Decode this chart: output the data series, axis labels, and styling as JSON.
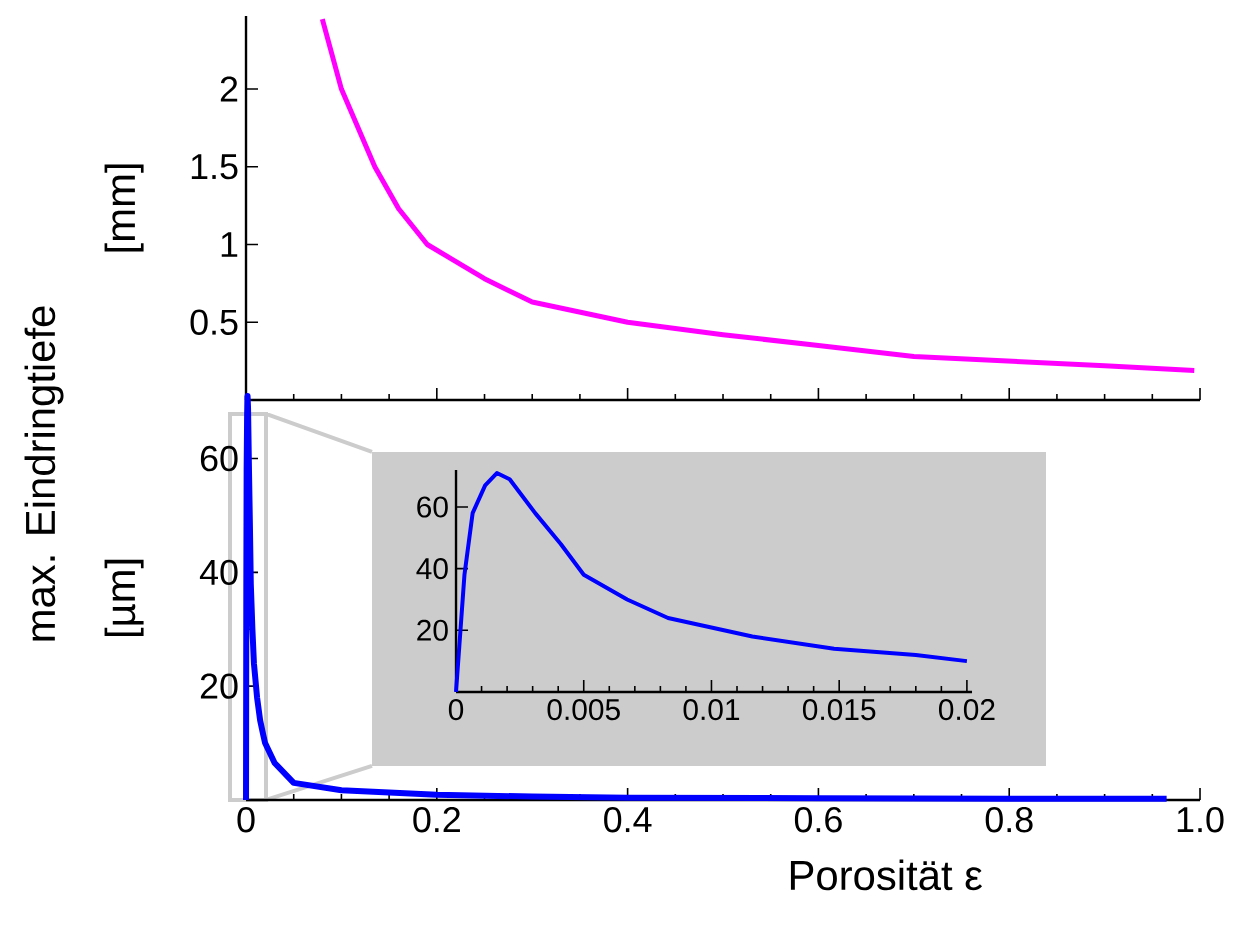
{
  "chart_data": [
    {
      "type": "line",
      "ylabel": "[mm]",
      "color": "#ff00ff",
      "xlim": [
        0,
        1
      ],
      "ylim": [
        0,
        2.47
      ],
      "xticks": [
        0,
        0.2,
        0.4,
        0.6,
        0.8,
        1
      ],
      "yticks": [
        0.5,
        1,
        1.5,
        2
      ],
      "tick_labels": "y",
      "x": [
        0.08,
        0.1,
        0.135,
        0.16,
        0.19,
        0.25,
        0.3,
        0.4,
        0.5,
        0.6,
        0.7,
        0.8,
        0.9,
        0.994
      ],
      "values": [
        2.45,
        2.0,
        1.5,
        1.23,
        1.0,
        0.78,
        0.63,
        0.5,
        0.42,
        0.35,
        0.28,
        0.25,
        0.22,
        0.19
      ]
    },
    {
      "type": "line",
      "xlabel": "Porosität ε",
      "ylabel": "[µm]",
      "annotations": [
        "max. Eindringtiefe"
      ],
      "color": "#0000ff",
      "xlim": [
        0,
        1
      ],
      "ylim": [
        0,
        71
      ],
      "xticks": [
        0,
        0.2,
        0.4,
        0.6,
        0.8,
        {
          "value": 1,
          "label": "1.0"
        }
      ],
      "yticks": [
        20,
        40,
        60
      ],
      "x": [
        0,
        0.00033,
        0.00065,
        0.00114,
        0.0016,
        0.0021,
        0.0031,
        0.0041,
        0.005,
        0.0067,
        0.0083,
        0.0116,
        0.0148,
        0.018,
        0.02,
        0.03,
        0.05,
        0.1,
        0.2,
        0.3,
        0.4,
        0.6,
        0.8,
        0.965
      ],
      "values": [
        0,
        38,
        58,
        67,
        71,
        69,
        58,
        48,
        38,
        30,
        24,
        18,
        14,
        11.5,
        10,
        6.5,
        3,
        1.7,
        0.9,
        0.6,
        0.4,
        0.3,
        0.2,
        0.2
      ]
    },
    {
      "type": "line",
      "color": "#0000ff",
      "xlim": [
        0,
        0.0202
      ],
      "ylim": [
        0,
        72
      ],
      "xticks": [
        0,
        0.005,
        0.01,
        0.015,
        0.02
      ],
      "yticks": [
        20,
        40,
        60
      ],
      "x": [
        0,
        0.00033,
        0.00065,
        0.00114,
        0.0016,
        0.0021,
        0.0031,
        0.0041,
        0.005,
        0.0067,
        0.0083,
        0.0116,
        0.0148,
        0.018,
        0.02
      ],
      "values": [
        0,
        38,
        58,
        67,
        71,
        69,
        58,
        48,
        38,
        30,
        24,
        18,
        14,
        12,
        10
      ]
    }
  ]
}
